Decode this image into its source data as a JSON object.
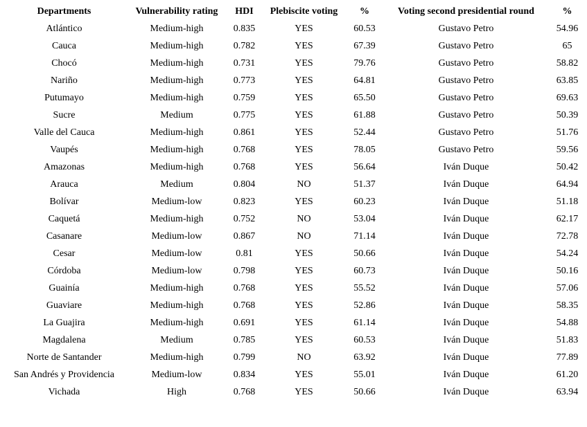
{
  "table": {
    "columns": [
      "Departments",
      "Vulnerability rating",
      "HDI",
      "Plebiscite voting",
      "%",
      "Voting second presidential round",
      "%"
    ],
    "rows": [
      [
        "Atlántico",
        "Medium-high",
        "0.835",
        "YES",
        "60.53",
        "Gustavo Petro",
        "54.96"
      ],
      [
        "Cauca",
        "Medium-high",
        "0.782",
        "YES",
        "67.39",
        "Gustavo Petro",
        "65"
      ],
      [
        "Chocó",
        "Medium-high",
        "0.731",
        "YES",
        "79.76",
        "Gustavo Petro",
        "58.82"
      ],
      [
        "Nariño",
        "Medium-high",
        "0.773",
        "YES",
        "64.81",
        "Gustavo Petro",
        "63.85"
      ],
      [
        "Putumayo",
        "Medium-high",
        "0.759",
        "YES",
        "65.50",
        "Gustavo Petro",
        "69.63"
      ],
      [
        "Sucre",
        "Medium",
        "0.775",
        "YES",
        "61.88",
        "Gustavo Petro",
        "50.39"
      ],
      [
        "Valle del Cauca",
        "Medium-high",
        "0.861",
        "YES",
        "52.44",
        "Gustavo Petro",
        "51.76"
      ],
      [
        "Vaupés",
        "Medium-high",
        "0.768",
        "YES",
        "78.05",
        "Gustavo Petro",
        "59.56"
      ],
      [
        "Amazonas",
        "Medium-high",
        "0.768",
        "YES",
        "56.64",
        "Iván Duque",
        "50.42"
      ],
      [
        "Arauca",
        "Medium",
        "0.804",
        "NO",
        "51.37",
        "Iván Duque",
        "64.94"
      ],
      [
        "Bolívar",
        "Medium-low",
        "0.823",
        "YES",
        "60.23",
        "Iván Duque",
        "51.18"
      ],
      [
        "Caquetá",
        "Medium-high",
        "0.752",
        "NO",
        "53.04",
        "Iván Duque",
        "62.17"
      ],
      [
        "Casanare",
        "Medium-low",
        "0.867",
        "NO",
        "71.14",
        "Iván Duque",
        "72.78"
      ],
      [
        "Cesar",
        "Medium-low",
        "0.81",
        "YES",
        "50.66",
        "Iván Duque",
        "54.24"
      ],
      [
        "Córdoba",
        "Medium-low",
        "0.798",
        "YES",
        "60.73",
        "Iván Duque",
        "50.16"
      ],
      [
        "Guainía",
        "Medium-high",
        "0.768",
        "YES",
        "55.52",
        "Iván Duque",
        "57.06"
      ],
      [
        "Guaviare",
        "Medium-high",
        "0.768",
        "YES",
        "52.86",
        "Iván Duque",
        "58.35"
      ],
      [
        "La Guajira",
        "Medium-high",
        "0.691",
        "YES",
        "61.14",
        "Iván Duque",
        "54.88"
      ],
      [
        "Magdalena",
        "Medium",
        "0.785",
        "YES",
        "60.53",
        "Iván Duque",
        "51.83"
      ],
      [
        "Norte de Santander",
        "Medium-high",
        "0.799",
        "NO",
        "63.92",
        "Iván Duque",
        "77.89"
      ],
      [
        "San Andrés y Providencia",
        "Medium-low",
        "0.834",
        "YES",
        "55.01",
        "Iván Duque",
        "61.20"
      ],
      [
        "Vichada",
        "High",
        "0.768",
        "YES",
        "50.66",
        "Iván Duque",
        "63.94"
      ]
    ],
    "text_color": "#000000",
    "background_color": "#ffffff"
  }
}
